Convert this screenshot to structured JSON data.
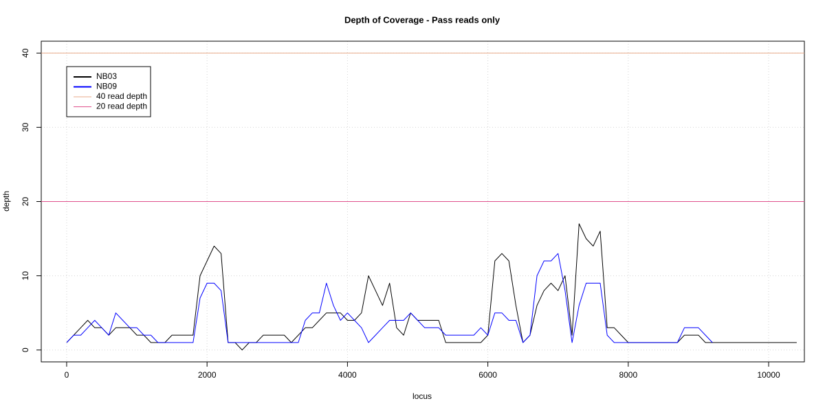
{
  "chart_data": {
    "type": "line",
    "title": "Depth of Coverage - Pass reads only",
    "x_label": "locus",
    "y_label": "depth",
    "x": [
      0,
      100,
      200,
      300,
      400,
      500,
      600,
      700,
      800,
      900,
      1000,
      1100,
      1200,
      1300,
      1400,
      1500,
      1600,
      1700,
      1800,
      1900,
      2000,
      2100,
      2200,
      2300,
      2400,
      2500,
      2600,
      2700,
      2800,
      2900,
      3000,
      3100,
      3200,
      3300,
      3400,
      3500,
      3600,
      3700,
      3800,
      3900,
      4000,
      4100,
      4200,
      4300,
      4400,
      4500,
      4600,
      4700,
      4800,
      4900,
      5000,
      5100,
      5200,
      5300,
      5400,
      5500,
      5600,
      5700,
      5800,
      5900,
      6000,
      6100,
      6200,
      6300,
      6400,
      6500,
      6600,
      6700,
      6800,
      6900,
      7000,
      7100,
      7200,
      7300,
      7400,
      7500,
      7600,
      7700,
      7800,
      7900,
      8000,
      8100,
      8200,
      8300,
      8400,
      8500,
      8600,
      8700,
      8800,
      8900,
      9000,
      9100,
      9200,
      9300,
      9400,
      9500,
      9600,
      9700,
      9800,
      9900,
      10000,
      10100,
      10200,
      10300,
      10400
    ],
    "series": [
      {
        "name": "NB03",
        "color": "#000000",
        "values": [
          1,
          2,
          3,
          4,
          3,
          3,
          2,
          3,
          3,
          3,
          2,
          2,
          1,
          1,
          1,
          2,
          2,
          2,
          2,
          10,
          12,
          14,
          13,
          1,
          1,
          0,
          1,
          1,
          2,
          2,
          2,
          2,
          1,
          2,
          3,
          3,
          4,
          5,
          5,
          5,
          4,
          4,
          5,
          10,
          8,
          6,
          9,
          3,
          2,
          5,
          4,
          4,
          4,
          4,
          1,
          1,
          1,
          1,
          1,
          1,
          2,
          12,
          13,
          12,
          6,
          1,
          2,
          6,
          8,
          9,
          8,
          10,
          2,
          17,
          15,
          14,
          16,
          3,
          3,
          2,
          1,
          1,
          1,
          1,
          1,
          1,
          1,
          1,
          2,
          2,
          2,
          1,
          1,
          1,
          1,
          1,
          1,
          1,
          1,
          1,
          1,
          1,
          1,
          1,
          1
        ]
      },
      {
        "name": "NB09",
        "color": "#0000ff",
        "values": [
          1,
          2,
          2,
          3,
          4,
          3,
          2,
          5,
          4,
          3,
          3,
          2,
          2,
          1,
          1,
          1,
          1,
          1,
          1,
          7,
          9,
          9,
          8,
          1,
          1,
          1,
          1,
          1,
          1,
          1,
          1,
          1,
          1,
          1,
          4,
          5,
          5,
          9,
          6,
          4,
          5,
          4,
          3,
          1,
          2,
          3,
          4,
          4,
          4,
          5,
          4,
          3,
          3,
          3,
          2,
          2,
          2,
          2,
          2,
          3,
          2,
          5,
          5,
          4,
          4,
          1,
          2,
          10,
          12,
          12,
          13,
          8,
          1,
          6,
          9,
          9,
          9,
          2,
          1,
          1,
          1,
          1,
          1,
          1,
          1,
          1,
          1,
          1,
          3,
          3,
          3,
          2,
          1,
          null,
          null,
          null,
          null,
          null,
          null,
          null,
          null,
          null,
          null,
          null,
          null
        ]
      }
    ],
    "hlines": [
      {
        "name": "40 read depth",
        "value": 40,
        "color": "#e8aa88"
      },
      {
        "name": "20 read depth",
        "value": 20,
        "color": "#e0508c"
      }
    ],
    "xlim": [
      -362,
      10509
    ],
    "ylim": [
      -1.6,
      41.6
    ],
    "xticks": [
      0,
      2000,
      4000,
      6000,
      8000,
      10000
    ],
    "yticks": [
      0,
      10,
      20,
      30,
      40
    ],
    "grid": true,
    "legend": "top-left"
  }
}
